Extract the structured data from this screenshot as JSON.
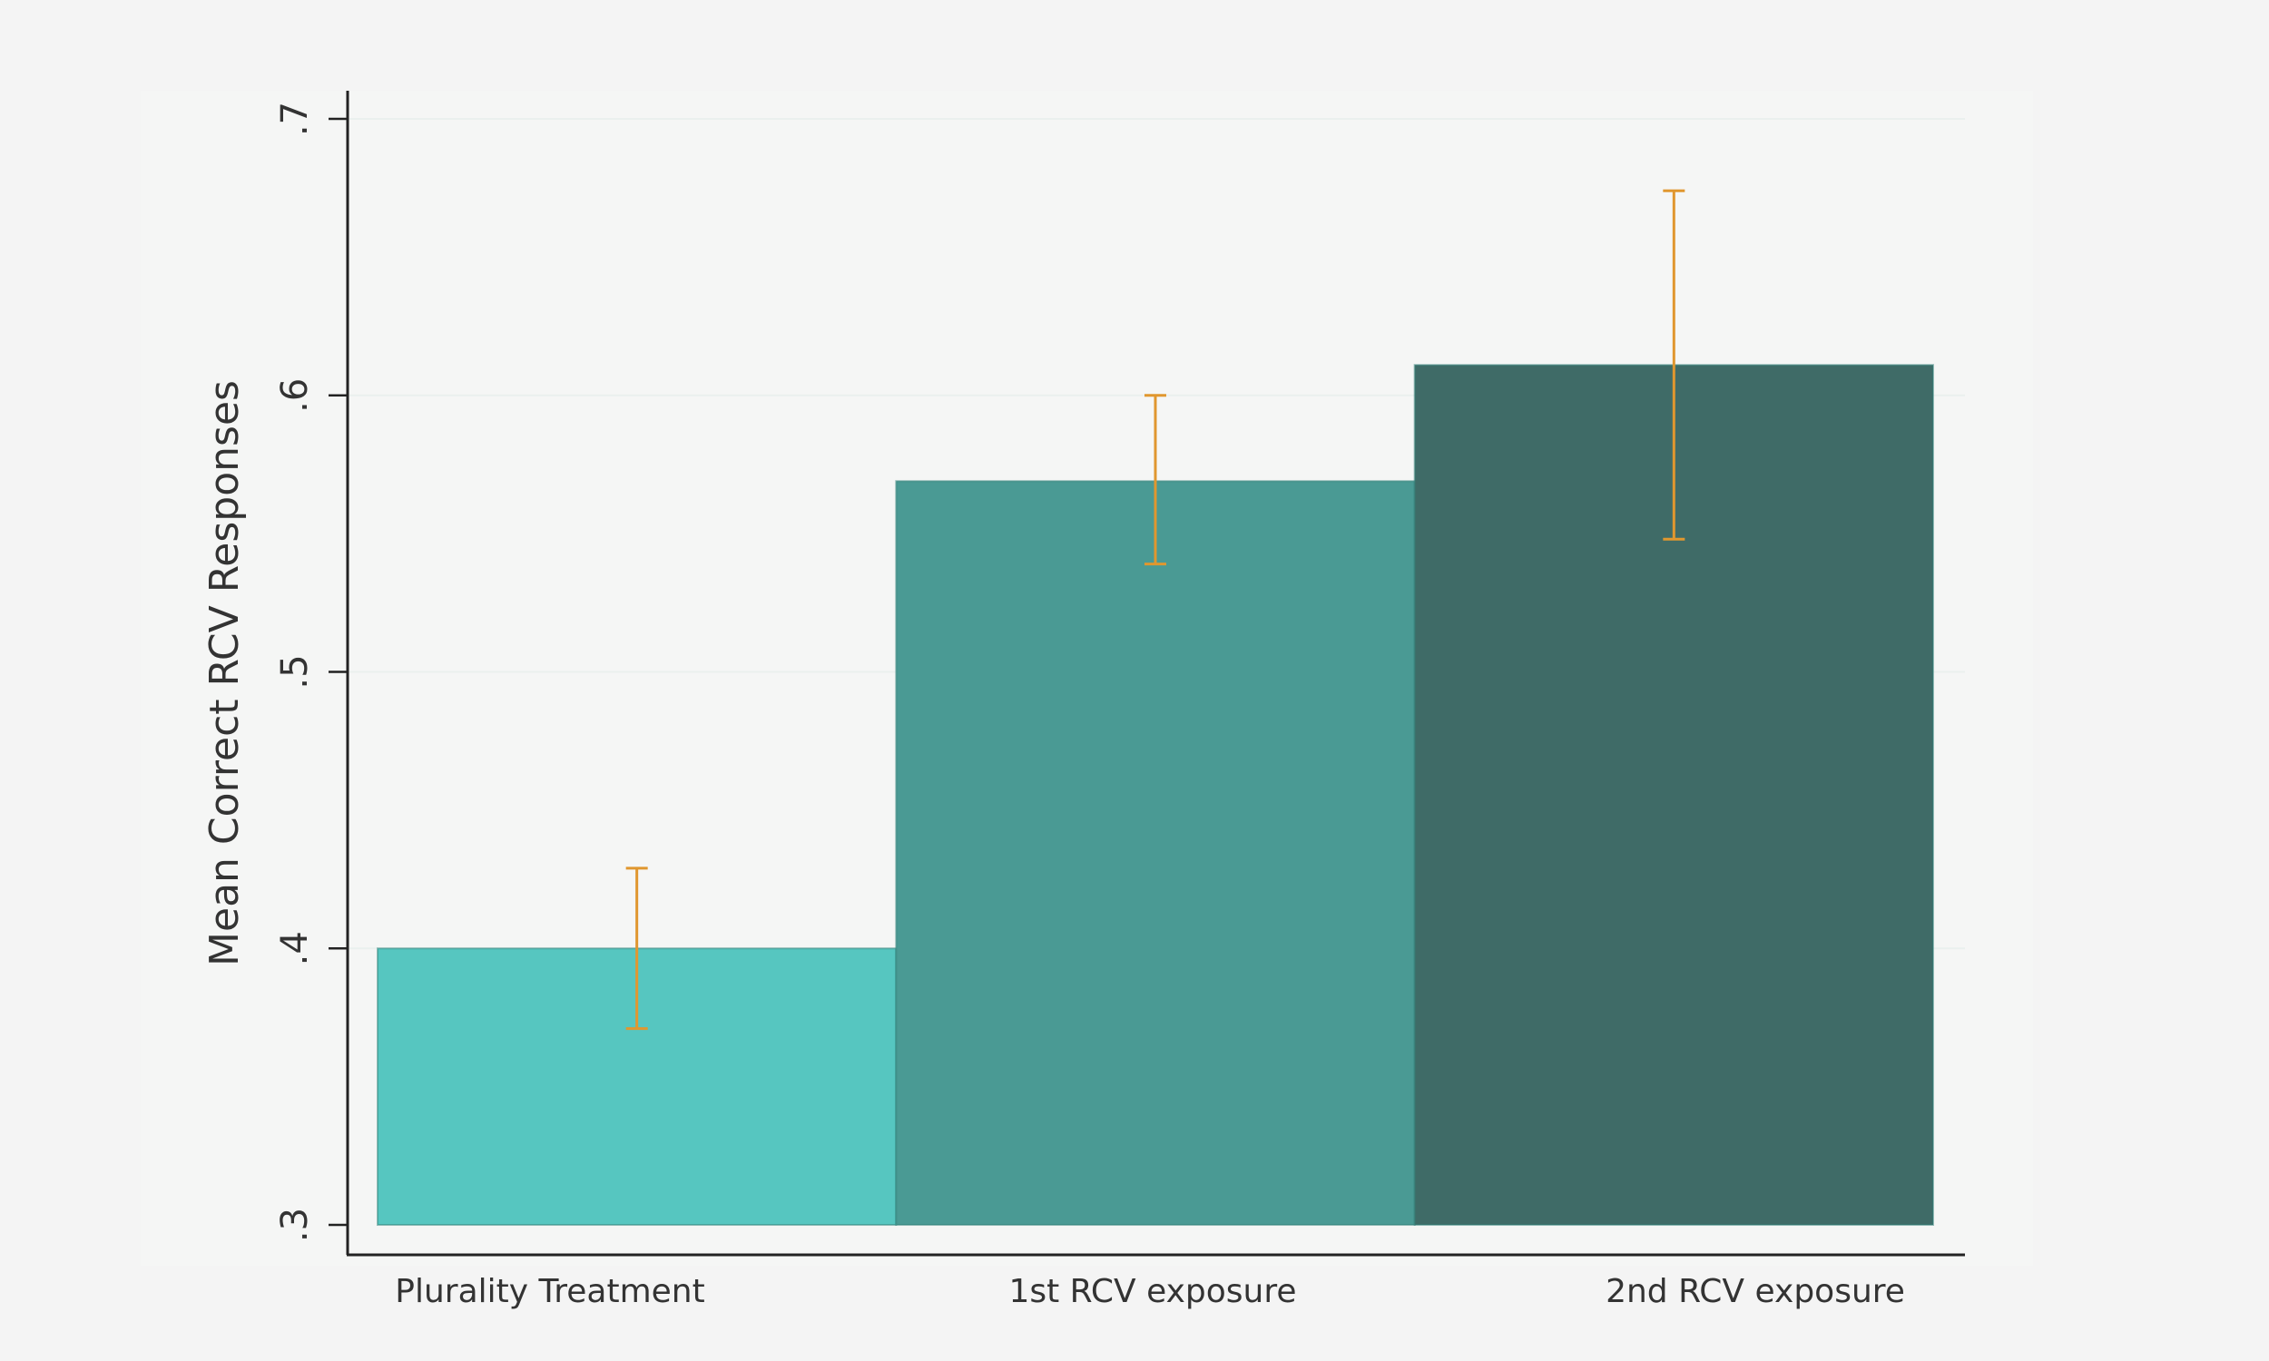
{
  "chart_data": {
    "type": "bar",
    "title": "",
    "xlabel": "",
    "ylabel": "Mean Correct RCV Responses",
    "ylim": [
      0.3,
      0.7
    ],
    "yticks": [
      0.3,
      0.4,
      0.5,
      0.6,
      0.7
    ],
    "ytick_labels": [
      ".3",
      ".4",
      ".5",
      ".6",
      ".7"
    ],
    "grid": true,
    "categories": [
      "Plurality Treatment",
      "1st RCV exposure",
      "2nd RCV exposure"
    ],
    "values": [
      0.4,
      0.569,
      0.611
    ],
    "error_low": [
      0.371,
      0.539,
      0.548
    ],
    "error_high": [
      0.429,
      0.6,
      0.674
    ],
    "colors": [
      "#56c6c0",
      "#4a9a94",
      "#3f6b67"
    ],
    "error_color": "#e0972f",
    "background": "#f4f4f4"
  }
}
